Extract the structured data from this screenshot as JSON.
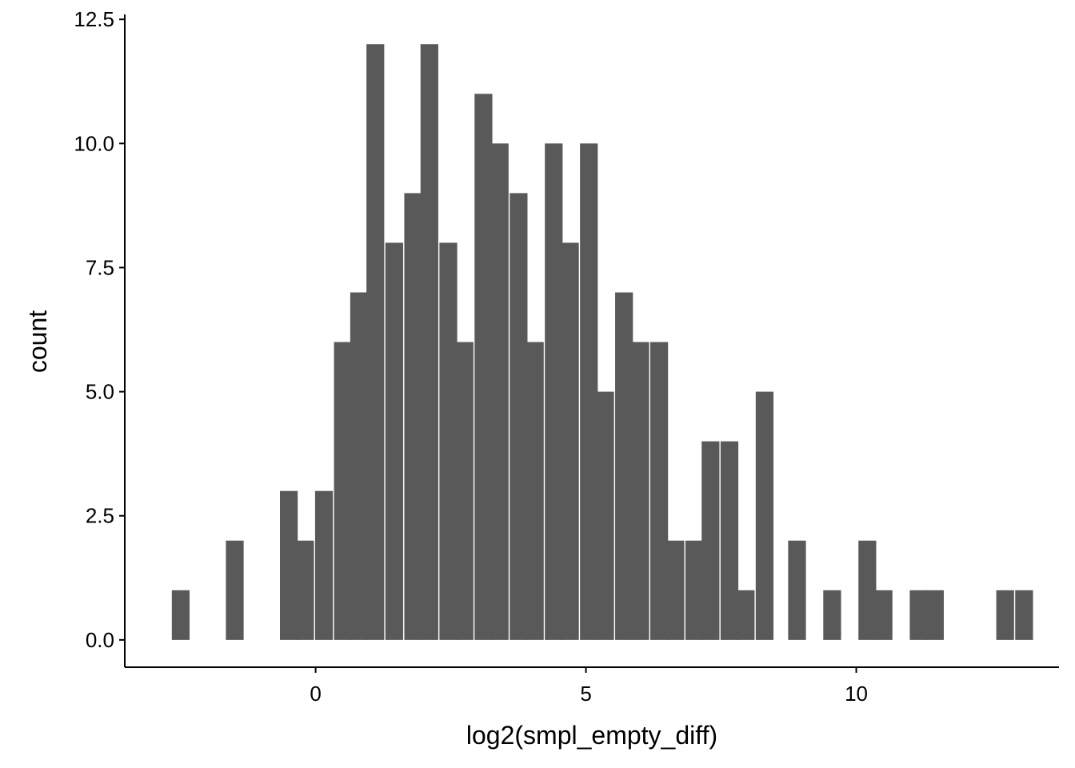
{
  "chart_data": {
    "type": "bar",
    "subtype": "histogram",
    "title": "",
    "xlabel": "log2(smpl_empty_diff)",
    "ylabel": "count",
    "bin_width": 0.32,
    "bins": [
      {
        "x": -2.5,
        "count": 1
      },
      {
        "x": -1.5,
        "count": 2
      },
      {
        "x": -0.5,
        "count": 3
      },
      {
        "x": -0.2,
        "count": 2
      },
      {
        "x": 0.15,
        "count": 3
      },
      {
        "x": 0.5,
        "count": 6
      },
      {
        "x": 0.8,
        "count": 7
      },
      {
        "x": 1.1,
        "count": 12
      },
      {
        "x": 1.45,
        "count": 8
      },
      {
        "x": 1.8,
        "count": 9
      },
      {
        "x": 2.1,
        "count": 12
      },
      {
        "x": 2.45,
        "count": 8
      },
      {
        "x": 2.75,
        "count": 6
      },
      {
        "x": 3.1,
        "count": 11
      },
      {
        "x": 3.4,
        "count": 10
      },
      {
        "x": 3.75,
        "count": 9
      },
      {
        "x": 4.05,
        "count": 6
      },
      {
        "x": 4.4,
        "count": 10
      },
      {
        "x": 4.7,
        "count": 8
      },
      {
        "x": 5.05,
        "count": 10
      },
      {
        "x": 5.35,
        "count": 5
      },
      {
        "x": 5.7,
        "count": 7
      },
      {
        "x": 6.0,
        "count": 6
      },
      {
        "x": 6.35,
        "count": 6
      },
      {
        "x": 6.65,
        "count": 2
      },
      {
        "x": 7.0,
        "count": 2
      },
      {
        "x": 7.3,
        "count": 4
      },
      {
        "x": 7.65,
        "count": 4
      },
      {
        "x": 7.95,
        "count": 1
      },
      {
        "x": 8.3,
        "count": 5
      },
      {
        "x": 8.9,
        "count": 2
      },
      {
        "x": 9.55,
        "count": 1
      },
      {
        "x": 10.2,
        "count": 2
      },
      {
        "x": 10.5,
        "count": 1
      },
      {
        "x": 11.15,
        "count": 1
      },
      {
        "x": 11.45,
        "count": 1
      },
      {
        "x": 12.75,
        "count": 1
      },
      {
        "x": 13.1,
        "count": 1
      }
    ],
    "xlim": [
      -3.53,
      13.75
    ],
    "ylim": [
      -0.55,
      12.6
    ],
    "x_ticks": [
      0,
      5,
      10
    ],
    "x_tick_labels": [
      "0",
      "5",
      "10"
    ],
    "y_ticks": [
      0,
      2.5,
      5,
      7.5,
      10,
      12.5
    ],
    "y_tick_labels": [
      "0.0",
      "2.5",
      "5.0",
      "7.5",
      "10.0",
      "12.5"
    ],
    "grid": false,
    "legend": "none",
    "bar_color": "#595959",
    "axis_color": "#000000"
  }
}
